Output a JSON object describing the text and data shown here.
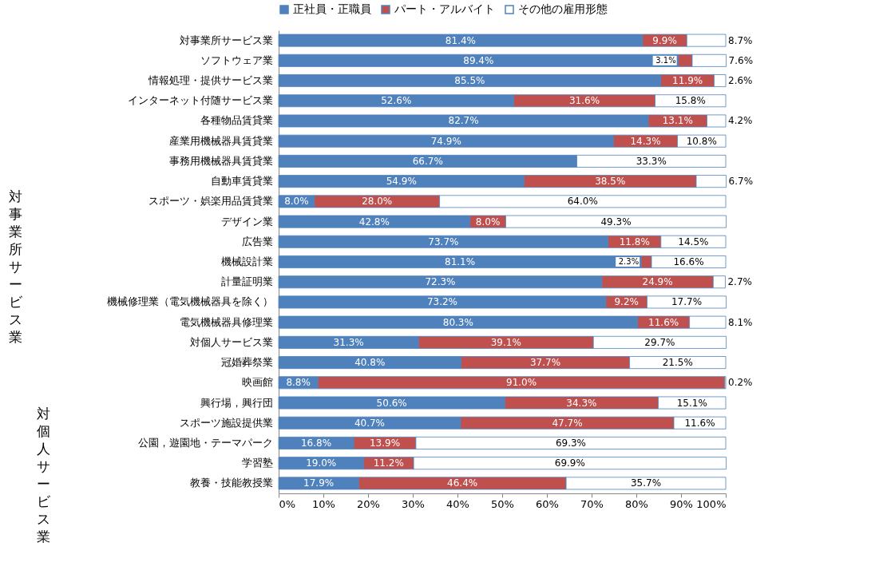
{
  "chart_data": {
    "type": "bar",
    "orientation": "horizontal",
    "stacked": true,
    "legend": "top",
    "grid": false,
    "categories": [
      "対事業所サービス業",
      "ソフトウェア業",
      "情報処理・提供サービス業",
      "インターネット付随サービス業",
      "各種物品賃貸業",
      "産業用機械器具賃貸業",
      "事務用機械器具賃貸業",
      "自動車賃貸業",
      "スポーツ・娯楽用品賃貸業",
      "デザイン業",
      "広告業",
      "機械設計業",
      "計量証明業",
      "機械修理業（電気機械器具を除く）",
      "電気機械器具修理業",
      "対個人サービス業",
      "冠婚葬祭業",
      "映画館",
      "興行場，興行団",
      "スポーツ施設提供業",
      "公園，遊園地・テーマパーク",
      "学習塾",
      "教養・技能教授業"
    ],
    "series": [
      {
        "name": "正社員・正職員",
        "color": "#4f81bd",
        "values": [
          81.4,
          89.4,
          85.5,
          52.6,
          82.7,
          74.9,
          66.7,
          54.9,
          8.0,
          42.8,
          73.7,
          81.1,
          72.3,
          73.2,
          80.3,
          31.3,
          40.8,
          8.8,
          50.6,
          40.7,
          16.8,
          19.0,
          17.9
        ],
        "value_labels": [
          "81.4%",
          "89.4%",
          "85.5%",
          "52.6%",
          "82.7%",
          "74.9%",
          "66.7%",
          "54.9%",
          "8.0%",
          "42.8%",
          "73.7%",
          "81.1%",
          "72.3%",
          "73.2%",
          "80.3%",
          "31.3%",
          "40.8%",
          "8.8%",
          "50.6%",
          "40.7%",
          "16.8%",
          "19.0%",
          "17.9%"
        ]
      },
      {
        "name": "パート・アルバイト",
        "color": "#c0504d",
        "values": [
          9.9,
          3.1,
          11.9,
          31.6,
          13.1,
          14.3,
          null,
          38.5,
          28.0,
          8.0,
          11.8,
          2.3,
          24.9,
          9.2,
          11.6,
          39.1,
          37.7,
          91.0,
          34.3,
          47.7,
          13.9,
          11.2,
          46.4
        ],
        "value_labels": [
          "9.9%",
          "3.1%",
          "11.9%",
          "31.6%",
          "13.1%",
          "14.3%",
          null,
          "38.5%",
          "28.0%",
          "8.0%",
          "11.8%",
          "2.3%",
          "24.9%",
          "9.2%",
          "11.6%",
          "39.1%",
          "37.7%",
          "91.0%",
          "34.3%",
          "47.7%",
          "13.9%",
          "11.2%",
          "46.4%"
        ]
      },
      {
        "name": "その他の雇用形態",
        "color": "#ffffff",
        "values": [
          8.7,
          7.6,
          2.6,
          15.8,
          4.2,
          10.8,
          33.3,
          6.7,
          64.0,
          49.3,
          14.5,
          16.6,
          2.7,
          17.7,
          8.1,
          29.7,
          21.5,
          0.2,
          15.1,
          11.6,
          69.3,
          69.9,
          35.7
        ],
        "value_labels": [
          "8.7%",
          "7.6%",
          "2.6%",
          "15.8%",
          "4.2%",
          "10.8%",
          "33.3%",
          "6.7%",
          "64.0%",
          "49.3%",
          "14.5%",
          "16.6%",
          "2.7%",
          "17.7%",
          "8.1%",
          "29.7%",
          "21.5%",
          "0.2%",
          "15.1%",
          "11.6%",
          "69.3%",
          "69.9%",
          "35.7%"
        ]
      }
    ],
    "xlim": [
      0,
      100
    ],
    "xticks": [
      {
        "value": 0,
        "label": "0%"
      },
      {
        "value": 10,
        "label": "10%"
      },
      {
        "value": 20,
        "label": "20%"
      },
      {
        "value": 30,
        "label": "30%"
      },
      {
        "value": 40,
        "label": "40%"
      },
      {
        "value": 50,
        "label": "50%"
      },
      {
        "value": 60,
        "label": "60%"
      },
      {
        "value": 70,
        "label": "70%"
      },
      {
        "value": 80,
        "label": "80%"
      },
      {
        "value": 90,
        "label": "90%"
      },
      {
        "value": 100,
        "label": "100%"
      }
    ],
    "annotations": [
      "対事業所サービス業",
      "対個人サービス業"
    ]
  }
}
